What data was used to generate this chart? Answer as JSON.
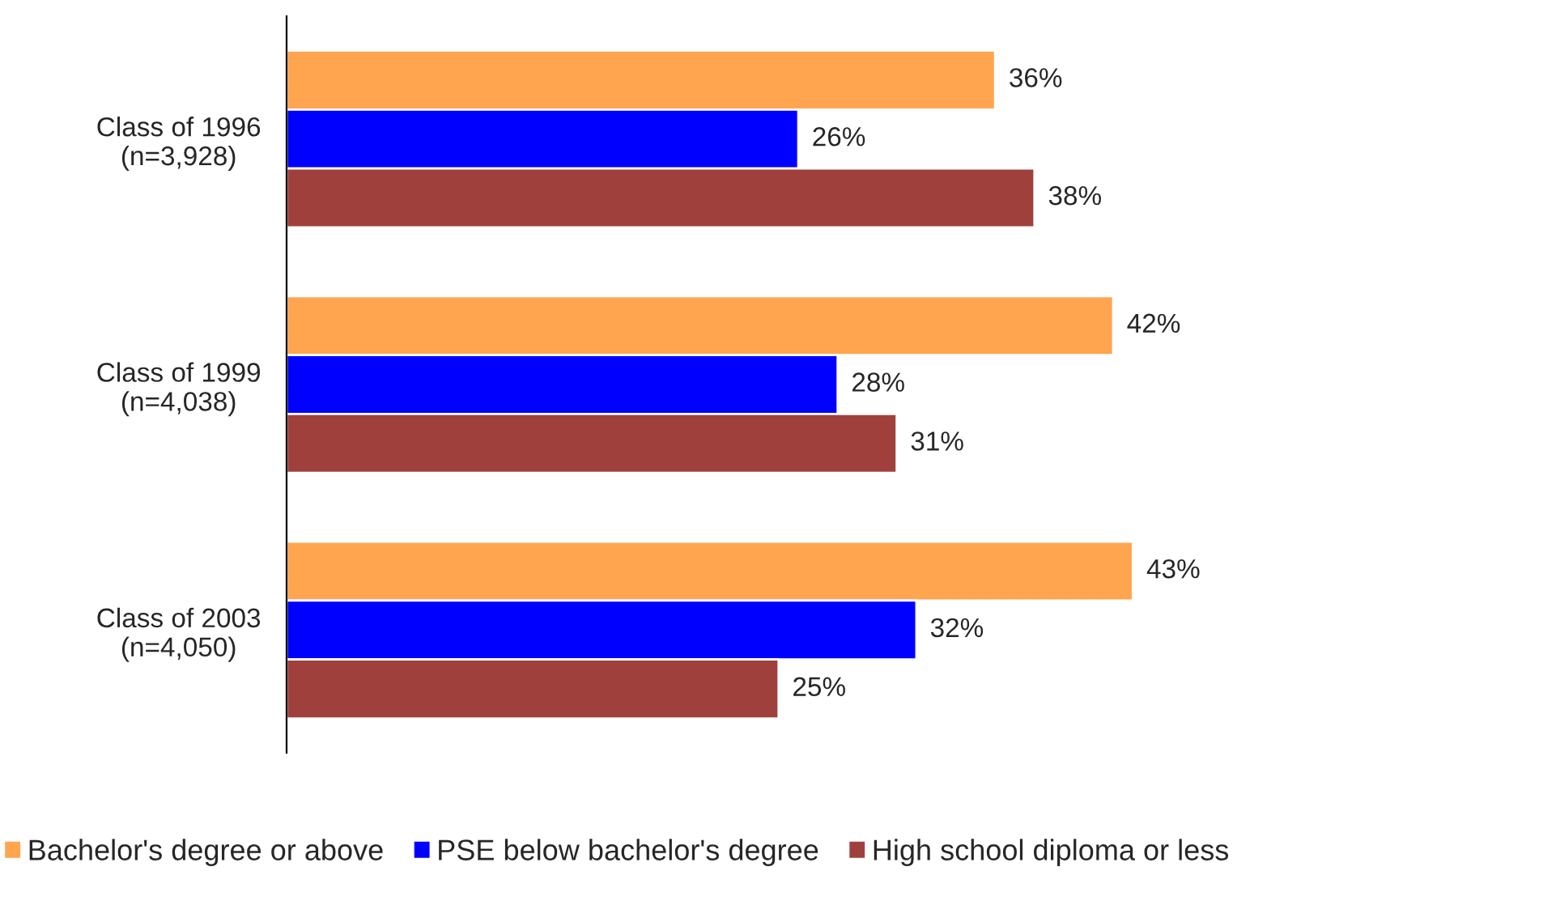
{
  "chart_data": {
    "type": "bar",
    "orientation": "horizontal",
    "categories": [
      "Class of 1996\n(n=3,928)",
      "Class of 1999\n(n=4,038)",
      "Class of 2003\n(n=4,050)"
    ],
    "series": [
      {
        "name": "Bachelor's degree or above",
        "color": "#ffa54f",
        "values": [
          36,
          42,
          43
        ],
        "value_labels": [
          "36%",
          "42%",
          "43%"
        ]
      },
      {
        "name": "PSE below bachelor's degree",
        "color": "#0000ff",
        "values": [
          26,
          28,
          32
        ],
        "value_labels": [
          "26%",
          "28%",
          "32%"
        ]
      },
      {
        "name": "High school diploma or less",
        "color": "#a0403d",
        "values": [
          38,
          31,
          25
        ],
        "value_labels": [
          "38%",
          "31%",
          "25%"
        ]
      }
    ],
    "legend": "bottom",
    "grid": false
  }
}
